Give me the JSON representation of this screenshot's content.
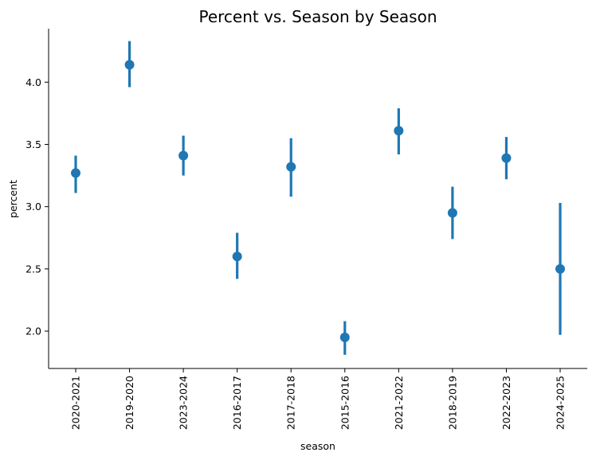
{
  "chart_data": {
    "type": "point",
    "title": "Percent vs. Season by Season",
    "xlabel": "season",
    "ylabel": "percent",
    "categories": [
      "2020-2021",
      "2019-2020",
      "2023-2024",
      "2016-2017",
      "2017-2018",
      "2015-2016",
      "2021-2022",
      "2018-2019",
      "2022-2023",
      "2024-2025"
    ],
    "series": [
      {
        "values": [
          3.27,
          4.14,
          3.41,
          2.6,
          3.32,
          1.95,
          3.61,
          2.95,
          3.39,
          2.5
        ],
        "ci_low": [
          3.11,
          3.96,
          3.25,
          2.42,
          3.08,
          1.81,
          3.42,
          2.74,
          3.22,
          1.97
        ],
        "ci_high": [
          3.41,
          4.33,
          3.57,
          2.79,
          3.55,
          2.08,
          3.79,
          3.16,
          3.56,
          3.03
        ],
        "color": "#1f77b4"
      }
    ],
    "yticks": [
      "2.0",
      "2.5",
      "3.0",
      "3.5",
      "4.0"
    ],
    "ylim": [
      1.7,
      4.43
    ],
    "grid": false,
    "legend": "none"
  }
}
